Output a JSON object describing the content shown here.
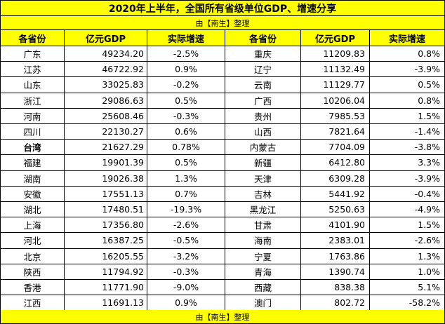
{
  "title": "2020年上半年，全国所有省级单位GDP、增速分享",
  "subtitle": "由【南生】整理",
  "footer": "由【南生】整理",
  "headers": [
    "各省份",
    "亿元GDP",
    "实际增速",
    "各省份",
    "亿元GDP",
    "实际增速"
  ],
  "rows": [
    {
      "p1": "广东",
      "g1": "49234.20",
      "r1": "-2.5%",
      "p2": "重庆",
      "g2": "11209.83",
      "r2": "0.8%"
    },
    {
      "p1": "江苏",
      "g1": "46722.92",
      "r1": "0.9%",
      "p2": "辽宁",
      "g2": "11132.49",
      "r2": "-3.9%"
    },
    {
      "p1": "山东",
      "g1": "33025.83",
      "r1": "-0.2%",
      "p2": "云南",
      "g2": "11129.77",
      "r2": "0.5%"
    },
    {
      "p1": "浙江",
      "g1": "29086.63",
      "r1": "0.5%",
      "p2": "广西",
      "g2": "10206.04",
      "r2": "0.8%"
    },
    {
      "p1": "河南",
      "g1": "25608.46",
      "r1": "-0.3%",
      "p2": "贵州",
      "g2": "7985.53",
      "r2": "1.5%"
    },
    {
      "p1": "四川",
      "g1": "22130.27",
      "r1": "0.6%",
      "p2": "山西",
      "g2": "7821.64",
      "r2": "-1.4%"
    },
    {
      "p1": "台湾",
      "g1": "21627.29",
      "r1": "0.78%",
      "p2": "内蒙古",
      "g2": "7704.09",
      "r2": "-3.8%"
    },
    {
      "p1": "福建",
      "g1": "19901.39",
      "r1": "0.5%",
      "p2": "新疆",
      "g2": "6412.80",
      "r2": "3.3%"
    },
    {
      "p1": "湖南",
      "g1": "19026.38",
      "r1": "1.3%",
      "p2": "天津",
      "g2": "6309.28",
      "r2": "-3.9%"
    },
    {
      "p1": "安徽",
      "g1": "17551.13",
      "r1": "0.7%",
      "p2": "吉林",
      "g2": "5441.92",
      "r2": "-0.4%"
    },
    {
      "p1": "湖北",
      "g1": "17480.51",
      "r1": "-19.3%",
      "p2": "黑龙江",
      "g2": "5250.63",
      "r2": "-4.9%"
    },
    {
      "p1": "上海",
      "g1": "17356.80",
      "r1": "-2.6%",
      "p2": "甘肃",
      "g2": "4101.90",
      "r2": "1.5%"
    },
    {
      "p1": "河北",
      "g1": "16387.25",
      "r1": "-0.5%",
      "p2": "海南",
      "g2": "2383.01",
      "r2": "-2.6%"
    },
    {
      "p1": "北京",
      "g1": "16205.55",
      "r1": "-3.2%",
      "p2": "宁夏",
      "g2": "1763.86",
      "r2": "1.3%"
    },
    {
      "p1": "陕西",
      "g1": "11794.92",
      "r1": "-0.3%",
      "p2": "青海",
      "g2": "1390.74",
      "r2": "1.0%"
    },
    {
      "p1": "香港",
      "g1": "11771.90",
      "r1": "-9.0%",
      "p2": "西藏",
      "g2": "838.38",
      "r2": "5.1%"
    },
    {
      "p1": "江西",
      "g1": "11691.13",
      "r1": "0.9%",
      "p2": "澳门",
      "g2": "802.72",
      "r2": "-58.2%"
    }
  ],
  "bold_rows": [
    "台湾"
  ],
  "colors": {
    "header_fill": "#ffff00",
    "border": "#000000"
  }
}
